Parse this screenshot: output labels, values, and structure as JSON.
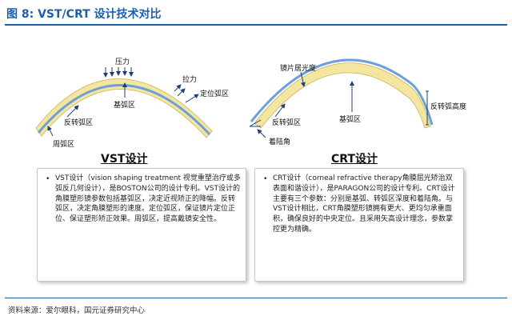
{
  "header": {
    "fig_prefix": "图 8:",
    "title_main": " VST/CRT ",
    "title_suffix": "设计技术对比"
  },
  "vst": {
    "labels": {
      "pressure": "压力",
      "pull": "拉力",
      "positioning_arc": "定位弧区",
      "reverse_arc": "反转弧区",
      "base_arc": "基弧区",
      "peripheral_arc": "周弧区"
    },
    "title": "VST设计",
    "text": "VST设计（vision shaping treatment 视觉重塑治疗或多弧反几何设计），是BOSTON公司的设计专利。VST设计的角膜塑形镜参数包括基弧区，决定近视矫正的降幅。反转弧区，决定角膜塑形的速度。定位弧区，保证镜片定位正位、保证塑形矫正效果。周弧区，提高戴镜安全性。"
  },
  "crt": {
    "labels": {
      "lens_sag": "镜片居光度",
      "reverse_arc_height": "反转弧高度",
      "landing_angle": "着陆角",
      "base_arc": "基弧区",
      "reverse_arc": "反转弧区"
    },
    "title": "CRT设计",
    "text": "CRT设计（corneal refractive therapy角膜屈光矫治双表面和谐设计），是PARAGON公司的设计专利。CRT设计主要有三个参数：分别是基弧、转弧区深度和着陆角。与VST设计相比，CRT角膜塑形镜拥有更大、更均匀承重面积，确保良好的中央定位。且采用矢高设计理念，参数掌控更为精确。"
  },
  "footer": {
    "source": "资料来源：爱尔眼科，国元证券研究中心"
  },
  "colors": {
    "accent": "#1f5fa8",
    "lens": "#f3e6a0",
    "cornea": "#6f9fd8",
    "arrow": "#1c3f7a"
  }
}
